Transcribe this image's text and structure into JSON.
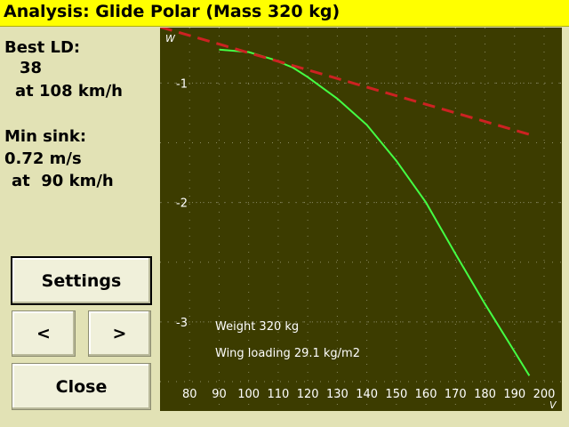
{
  "window": {
    "title": "Analysis: Glide Polar (Mass 320 kg)"
  },
  "info": {
    "best_ld_label": "Best LD:",
    "best_ld_value": "38",
    "best_ld_speed": "at 108 km/h",
    "min_sink_label": "Min sink:",
    "min_sink_value": "0.72 m/s",
    "min_sink_speed": "at  90 km/h"
  },
  "buttons": {
    "settings": "Settings",
    "prev": "<",
    "next": ">",
    "close": "Close"
  },
  "colors": {
    "polar_line": "#44ff44",
    "best_glide_line": "#cc2222",
    "plot_bg": "#3c3c00"
  },
  "chart_data": {
    "type": "line",
    "xlabel": "V",
    "ylabel": "W",
    "xlim": [
      70,
      200
    ],
    "ylim": [
      -3.5,
      -0.55
    ],
    "x_ticks": [
      "80",
      "90",
      "100",
      "110",
      "120",
      "130",
      "140",
      "150",
      "160",
      "170",
      "180",
      "190",
      "200"
    ],
    "y_ticks": [
      "-1",
      "-2",
      "-3"
    ],
    "grid": true,
    "series": [
      {
        "style": "solid",
        "x": [
          90,
          100,
          108,
          115,
          120,
          130,
          140,
          150,
          160,
          170,
          180,
          190,
          195
        ],
        "y": [
          -0.72,
          -0.74,
          -0.8,
          -0.87,
          -0.95,
          -1.13,
          -1.35,
          -1.65,
          -2.0,
          -2.43,
          -2.85,
          -3.25,
          -3.45
        ]
      },
      {
        "style": "dashed",
        "x": [
          70,
          195
        ],
        "y": [
          -0.53,
          -1.43
        ]
      }
    ],
    "annotations": [
      "Weight 320 kg",
      "Wing loading 29.1 kg/m2"
    ]
  }
}
